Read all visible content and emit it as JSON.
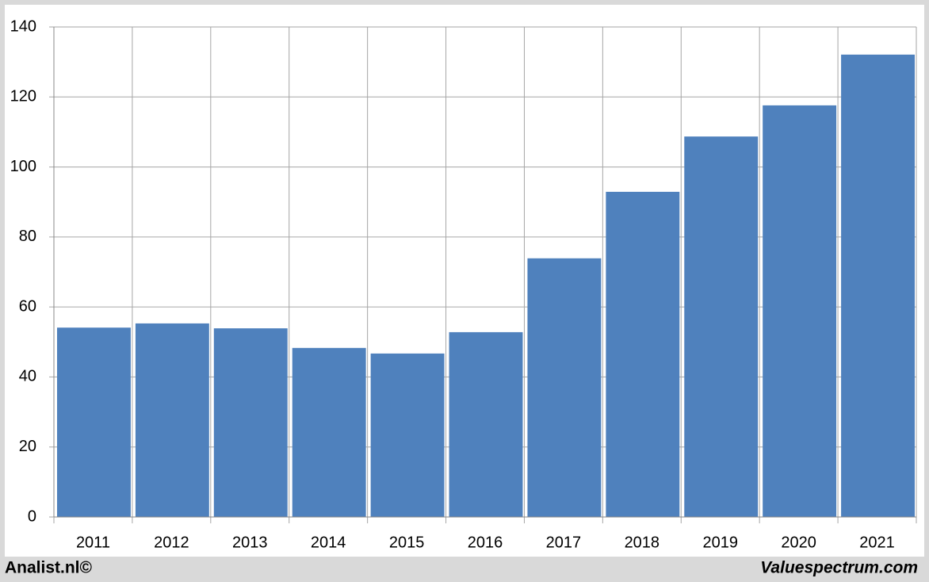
{
  "chart_data": {
    "type": "bar",
    "categories": [
      "2011",
      "2012",
      "2013",
      "2014",
      "2015",
      "2016",
      "2017",
      "2018",
      "2019",
      "2020",
      "2021"
    ],
    "values": [
      54.1,
      55.3,
      53.9,
      48.3,
      46.7,
      52.8,
      73.9,
      92.9,
      108.7,
      117.6,
      132.1
    ],
    "color": "#4f81bd",
    "ylim": [
      0,
      140
    ],
    "yticks": [
      0,
      20,
      40,
      60,
      80,
      100,
      120,
      140
    ],
    "grid": true,
    "credits": [
      "Analist.nl©",
      "Valuespectrum.com"
    ]
  }
}
